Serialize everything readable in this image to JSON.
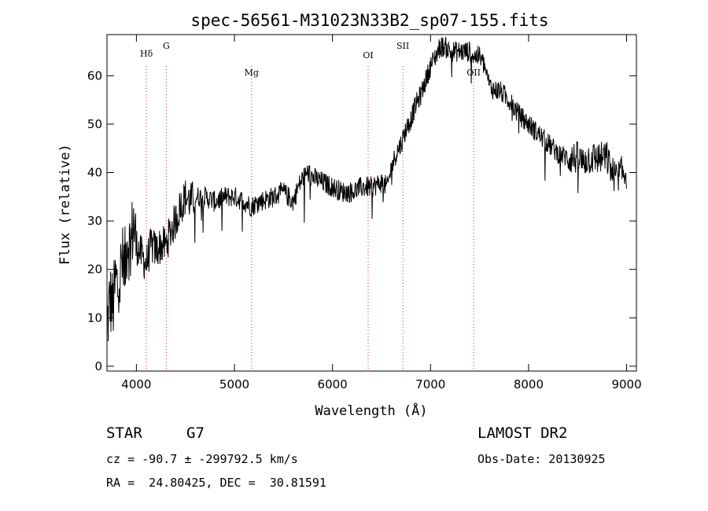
{
  "chart_data": {
    "type": "line",
    "title": "spec-56561-M31023N33B2_sp07-155.fits",
    "xlabel": "Wavelength (Å)",
    "ylabel": "Flux (relative)",
    "xlim": [
      3700,
      9100
    ],
    "ylim": [
      -1,
      68.5
    ],
    "xticks": [
      4000,
      5000,
      6000,
      7000,
      8000,
      9000
    ],
    "yticks": [
      0,
      10,
      20,
      30,
      40,
      50,
      60
    ],
    "grid": false,
    "lines": [
      {
        "label": "Hδ",
        "x": 4102
      },
      {
        "label": "G",
        "x": 4305
      },
      {
        "label": "Mg",
        "x": 5175
      },
      {
        "label": "OI",
        "x": 6364
      },
      {
        "label": "SII",
        "x": 6718
      },
      {
        "label": "OII",
        "x": 7440
      }
    ],
    "series": [
      {
        "x": [
          3700,
          3730,
          3760,
          3790,
          3820,
          3850,
          3880,
          3910,
          3940,
          3970,
          4000,
          4050,
          4100,
          4150,
          4200,
          4250,
          4300,
          4350,
          4400,
          4450,
          4500,
          4550,
          4600,
          4700,
          4800,
          4900,
          5000,
          5100,
          5175,
          5250,
          5400,
          5500,
          5600,
          5650,
          5700,
          5750,
          5800,
          5900,
          6000,
          6100,
          6200,
          6300,
          6400,
          6500,
          6560,
          6600,
          6650,
          6700,
          6750,
          6800,
          6850,
          6900,
          6950,
          7000,
          7050,
          7100,
          7150,
          7200,
          7300,
          7400,
          7450,
          7500,
          7550,
          7600,
          7650,
          7700,
          7800,
          7900,
          8000,
          8100,
          8200,
          8300,
          8400,
          8500,
          8550,
          8600,
          8700,
          8800,
          8850,
          8900,
          8950,
          9000
        ],
        "values": [
          8,
          14,
          12,
          18,
          15,
          22,
          20,
          27,
          24,
          30,
          25,
          23,
          21,
          25,
          24,
          25,
          25,
          28,
          30,
          33,
          35,
          34,
          35,
          35,
          34,
          35,
          35,
          34,
          33,
          34,
          35,
          36,
          34,
          37,
          39,
          40,
          39,
          38,
          37,
          36,
          36,
          37,
          37,
          38,
          37,
          41,
          44,
          46,
          49,
          51,
          54,
          56,
          59,
          62,
          64,
          66,
          66,
          65,
          65,
          65,
          64,
          64,
          62,
          58,
          57,
          57,
          55,
          52,
          50,
          48,
          46,
          44,
          43,
          43,
          42,
          43,
          43,
          43,
          40,
          39,
          40,
          40
        ]
      }
    ]
  },
  "info": {
    "object_class": "STAR",
    "subclass": "G7",
    "survey": "LAMOST DR2",
    "redshift": "cz = -90.7 ± -299792.5 km/s",
    "obs_date": "Obs-Date: 20130925",
    "coords": "RA =  24.80425, DEC =  30.81591"
  }
}
